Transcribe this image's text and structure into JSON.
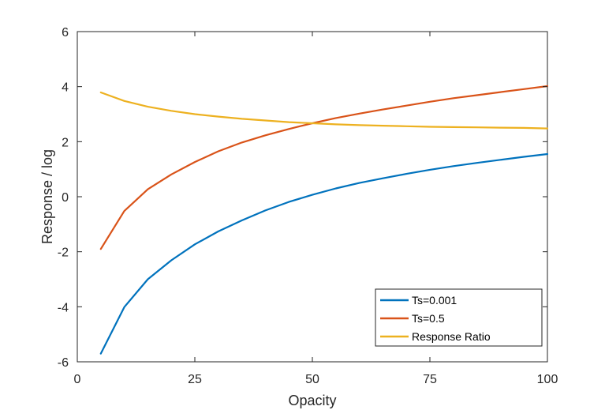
{
  "chart_data": {
    "type": "line",
    "title": "",
    "xlabel": "Opacity",
    "ylabel": "Response / log",
    "xlim": [
      0,
      100
    ],
    "ylim": [
      -6,
      6
    ],
    "xticks": [
      0,
      25,
      50,
      75,
      100
    ],
    "yticks": [
      -6,
      -4,
      -2,
      0,
      2,
      4,
      6
    ],
    "grid": false,
    "legend_position": "bottom-right",
    "x": [
      5,
      10,
      15,
      20,
      25,
      30,
      35,
      40,
      45,
      50,
      55,
      60,
      65,
      70,
      75,
      80,
      85,
      90,
      95,
      100
    ],
    "series": [
      {
        "name": "Ts=0.001",
        "color": "#0072BD",
        "values": [
          -5.7,
          -4.01,
          -3.0,
          -2.31,
          -1.73,
          -1.26,
          -0.86,
          -0.5,
          -0.19,
          0.07,
          0.3,
          0.5,
          0.67,
          0.83,
          0.98,
          1.11,
          1.23,
          1.34,
          1.45,
          1.55
        ]
      },
      {
        "name": "Ts=0.5",
        "color": "#D95319",
        "values": [
          -1.9,
          -0.52,
          0.27,
          0.81,
          1.26,
          1.65,
          1.97,
          2.23,
          2.46,
          2.67,
          2.86,
          3.02,
          3.17,
          3.31,
          3.45,
          3.58,
          3.69,
          3.8,
          3.91,
          4.02
        ]
      },
      {
        "name": "Response Ratio",
        "color": "#EDB120",
        "values": [
          3.79,
          3.48,
          3.27,
          3.12,
          3.0,
          2.91,
          2.83,
          2.77,
          2.71,
          2.67,
          2.63,
          2.6,
          2.58,
          2.56,
          2.54,
          2.53,
          2.52,
          2.51,
          2.5,
          2.48
        ]
      }
    ]
  }
}
